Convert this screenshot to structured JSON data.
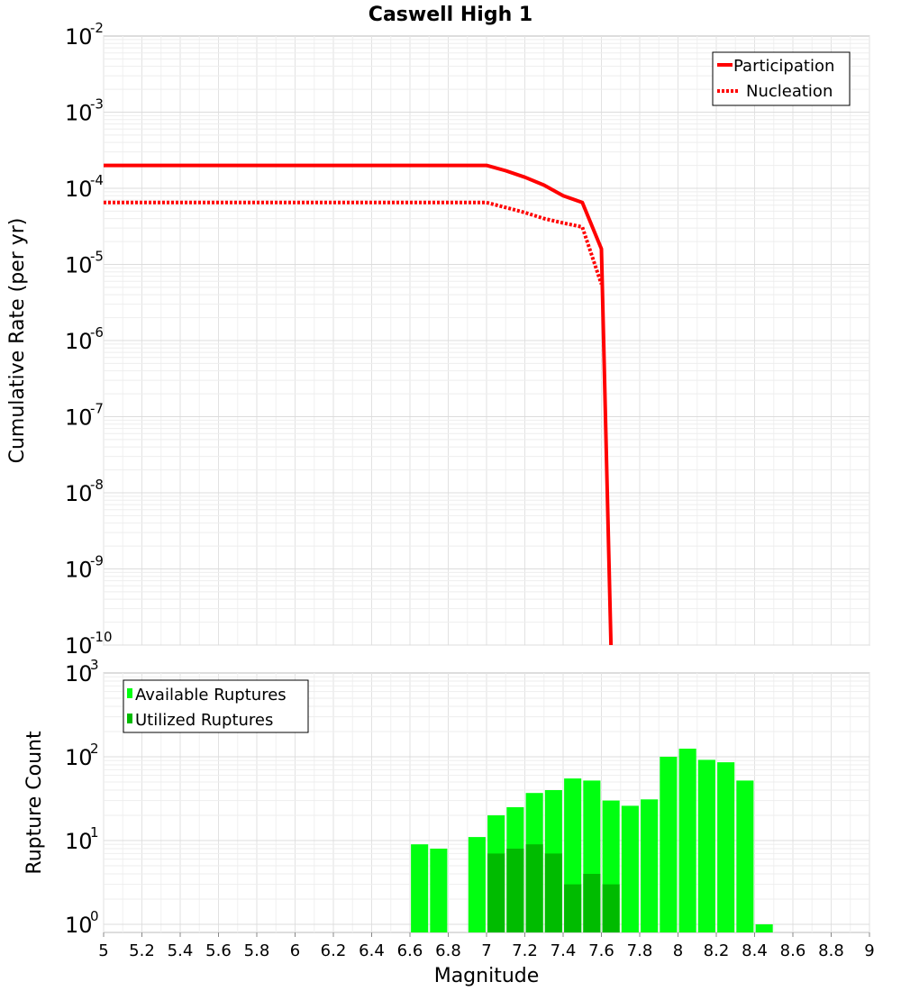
{
  "chart_data": [
    {
      "type": "line",
      "title": "Caswell High 1",
      "xlabel": "",
      "ylabel": "Cumulative Rate (per yr)",
      "xlim": [
        5,
        9
      ],
      "ylim": [
        1e-10,
        0.01
      ],
      "yscale": "log",
      "ytick_exponents": [
        "-2",
        "-3",
        "-4",
        "-5",
        "-6",
        "-7",
        "-8",
        "-9",
        "-10"
      ],
      "ytick_base": "10",
      "grid": true,
      "legend_position": "top-right",
      "series": [
        {
          "name": "Participation",
          "style": "solid",
          "color": "#ff0000",
          "x": [
            5.0,
            5.1,
            5.2,
            5.3,
            5.4,
            5.5,
            5.6,
            5.7,
            5.8,
            5.9,
            6.0,
            6.1,
            6.2,
            6.3,
            6.4,
            6.5,
            6.6,
            6.7,
            6.8,
            6.9,
            7.0,
            7.1,
            7.2,
            7.3,
            7.4,
            7.5,
            7.6,
            7.65
          ],
          "y": [
            0.0002,
            0.0002,
            0.0002,
            0.0002,
            0.0002,
            0.0002,
            0.0002,
            0.0002,
            0.0002,
            0.0002,
            0.0002,
            0.0002,
            0.0002,
            0.0002,
            0.0002,
            0.0002,
            0.0002,
            0.0002,
            0.0002,
            0.0002,
            0.0002,
            0.00017,
            0.00014,
            0.00011,
            8e-05,
            6.5e-05,
            1.6e-05,
            1e-10
          ]
        },
        {
          "name": "Nucleation",
          "style": "dotted",
          "color": "#ff0000",
          "x": [
            5.0,
            5.1,
            5.2,
            5.3,
            5.4,
            5.5,
            5.6,
            5.7,
            5.8,
            5.9,
            6.0,
            6.1,
            6.2,
            6.3,
            6.4,
            6.5,
            6.6,
            6.7,
            6.8,
            6.9,
            7.0,
            7.1,
            7.2,
            7.3,
            7.4,
            7.5,
            7.6
          ],
          "y": [
            6.5e-05,
            6.5e-05,
            6.5e-05,
            6.5e-05,
            6.5e-05,
            6.5e-05,
            6.5e-05,
            6.5e-05,
            6.5e-05,
            6.5e-05,
            6.5e-05,
            6.5e-05,
            6.5e-05,
            6.5e-05,
            6.5e-05,
            6.5e-05,
            6.5e-05,
            6.5e-05,
            6.5e-05,
            6.5e-05,
            6.5e-05,
            5.6e-05,
            4.8e-05,
            4e-05,
            3.5e-05,
            3.1e-05,
            5.5e-06
          ]
        }
      ]
    },
    {
      "type": "bar",
      "title": "",
      "xlabel": "Magnitude",
      "ylabel": "Rupture Count",
      "xlim": [
        5,
        9
      ],
      "ylim": [
        0.8,
        1000
      ],
      "yscale": "log",
      "ytick_exponents": [
        "0",
        "1",
        "2",
        "3"
      ],
      "ytick_base": "10",
      "xticks": [
        "5",
        "5.2",
        "5.4",
        "5.6",
        "5.8",
        "6",
        "6.2",
        "6.4",
        "6.6",
        "6.8",
        "7",
        "7.2",
        "7.4",
        "7.6",
        "7.8",
        "8",
        "8.2",
        "8.4",
        "8.6",
        "8.8",
        "9"
      ],
      "grid": true,
      "legend_position": "top-left",
      "series": [
        {
          "name": "Available Ruptures",
          "color": "#00ff10",
          "x": [
            6.65,
            6.75,
            6.95,
            7.05,
            7.15,
            7.25,
            7.35,
            7.45,
            7.55,
            7.65,
            7.75,
            7.85,
            7.95,
            8.05,
            8.15,
            8.25,
            8.35,
            8.45
          ],
          "values": [
            9,
            8,
            11,
            20,
            25,
            37,
            40,
            55,
            52,
            30,
            26,
            31,
            100,
            125,
            92,
            86,
            52,
            1
          ]
        },
        {
          "name": "Utilized Ruptures",
          "color": "#00bb00",
          "x": [
            7.05,
            7.15,
            7.25,
            7.35,
            7.45,
            7.55,
            7.65
          ],
          "values": [
            7,
            8,
            9,
            7,
            3,
            4,
            3
          ]
        }
      ]
    }
  ]
}
